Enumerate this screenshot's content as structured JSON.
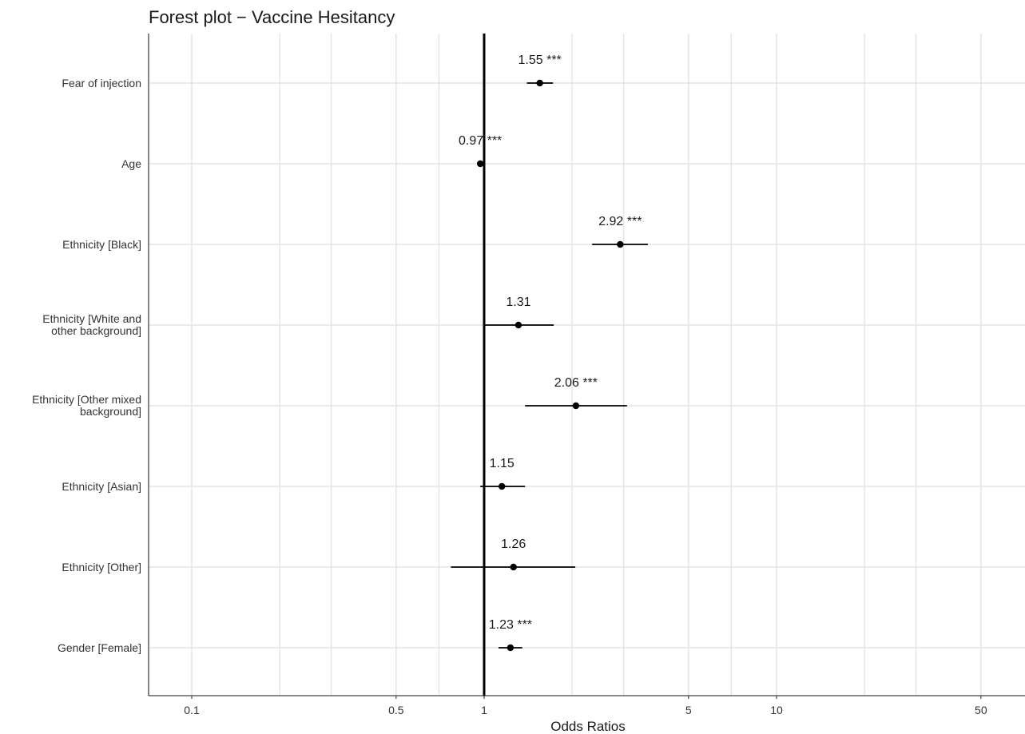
{
  "chart_data": {
    "type": "forest",
    "title": "Forest plot − Vaccine Hesitancy",
    "xlabel": "Odds Ratios",
    "x_scale": "log10",
    "xlim": [
      0.07,
      65
    ],
    "x_ticks": [
      0.1,
      0.5,
      1,
      5,
      10,
      50
    ],
    "x_tick_labels": [
      "0.1",
      "0.5",
      "1",
      "5",
      "10",
      "50"
    ],
    "x_minor_gridlines": [
      0.2,
      0.3,
      0.7,
      2,
      3,
      7,
      20,
      30
    ],
    "reference_line": 1,
    "grid": true,
    "rows": [
      {
        "label": [
          "Fear of injection"
        ],
        "or": 1.55,
        "ci": [
          1.4,
          1.72
        ],
        "text": "1.55 ***"
      },
      {
        "label": [
          "Age"
        ],
        "or": 0.97,
        "ci": [
          0.96,
          0.98
        ],
        "text": "0.97 ***"
      },
      {
        "label": [
          "Ethnicity [Black]"
        ],
        "or": 2.92,
        "ci": [
          2.34,
          3.63
        ],
        "text": "2.92 ***"
      },
      {
        "label": [
          "Ethnicity [White and",
          "other background]"
        ],
        "or": 1.31,
        "ci": [
          1.0,
          1.73
        ],
        "text": "1.31"
      },
      {
        "label": [
          "Ethnicity [Other mixed",
          "background]"
        ],
        "or": 2.06,
        "ci": [
          1.38,
          3.08
        ],
        "text": "2.06 ***"
      },
      {
        "label": [
          "Ethnicity [Asian]"
        ],
        "or": 1.15,
        "ci": [
          0.97,
          1.38
        ],
        "text": "1.15"
      },
      {
        "label": [
          "Ethnicity [Other]"
        ],
        "or": 1.26,
        "ci": [
          0.77,
          2.05
        ],
        "text": "1.26"
      },
      {
        "label": [
          "Gender [Female]"
        ],
        "or": 1.23,
        "ci": [
          1.12,
          1.35
        ],
        "text": "1.23 ***"
      }
    ]
  }
}
